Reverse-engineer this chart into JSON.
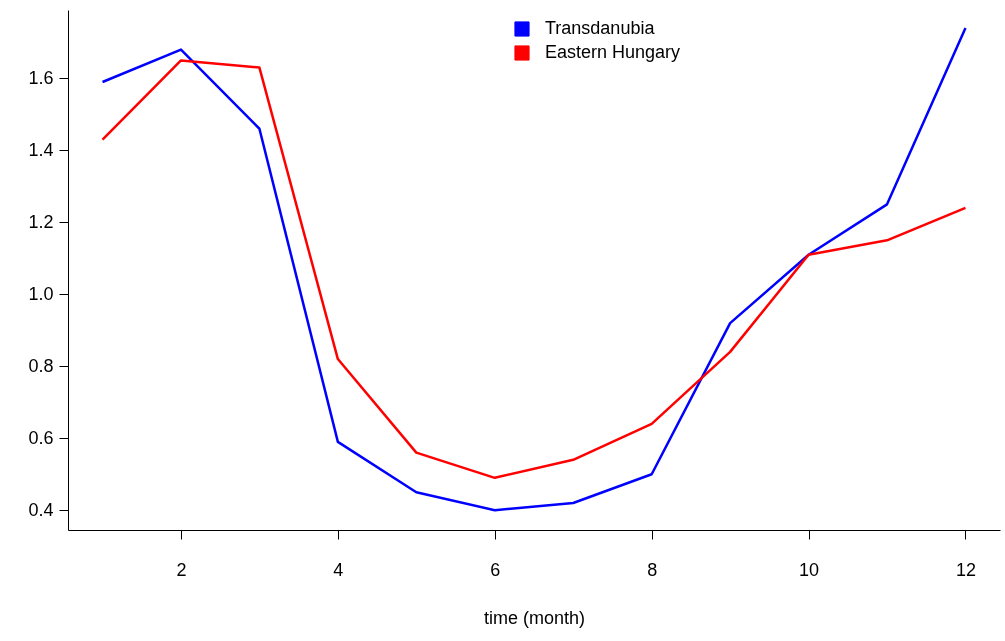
{
  "chart_data": {
    "type": "line",
    "xlabel": "time (month)",
    "x": [
      1,
      2,
      3,
      4,
      5,
      6,
      7,
      8,
      9,
      10,
      11,
      12
    ],
    "series": [
      {
        "name": "Transdanubia",
        "color": "#0000ff",
        "values": [
          1.59,
          1.68,
          1.46,
          0.59,
          0.45,
          0.4,
          0.42,
          0.5,
          0.92,
          1.11,
          1.25,
          1.74
        ]
      },
      {
        "name": "Eastern Hungary",
        "color": "#ff0000",
        "values": [
          1.43,
          1.65,
          1.63,
          0.82,
          0.56,
          0.49,
          0.54,
          0.64,
          0.84,
          1.11,
          1.15,
          1.24
        ]
      }
    ],
    "xlim": [
      0.56,
      12.44
    ],
    "xticks": [
      2,
      4,
      6,
      8,
      10,
      12
    ],
    "ylim": [
      0.345,
      1.79
    ],
    "yticks": [
      0.4,
      0.6,
      0.8,
      {
        "value": 1,
        "label": "1.0"
      },
      1.2,
      1.4,
      1.6
    ],
    "grid": false,
    "legend": "top",
    "marker": "none",
    "line_style": "solid"
  }
}
